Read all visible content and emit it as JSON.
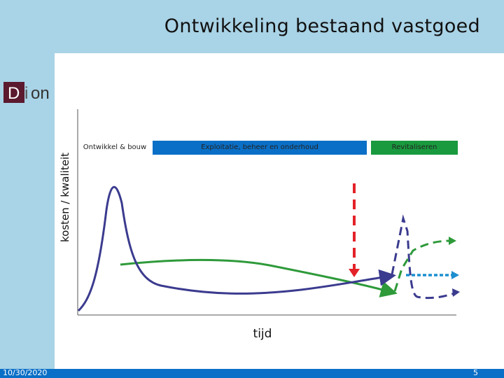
{
  "slide": {
    "title": "Ontwikkeling bestaand vastgoed",
    "date": "10/30/2020",
    "page_number": "5"
  },
  "logo": {
    "text": "Dion"
  },
  "diagram": {
    "y_axis_label": "kosten / kwaliteit",
    "x_axis_label": "tijd",
    "phases": [
      "Ontwikkel & bouw",
      "Exploitatie, beheer en onderhoud",
      "Revitaliseren"
    ]
  },
  "colors": {
    "band": "#a9d3e6",
    "blue_curve": "#3b3b8f",
    "green_curve": "#2e9a3a",
    "red_arrow": "#e32228",
    "cyan_arrow": "#1c8fcf",
    "phase_blue": "#0a6fc6",
    "phase_green": "#199a3e"
  }
}
